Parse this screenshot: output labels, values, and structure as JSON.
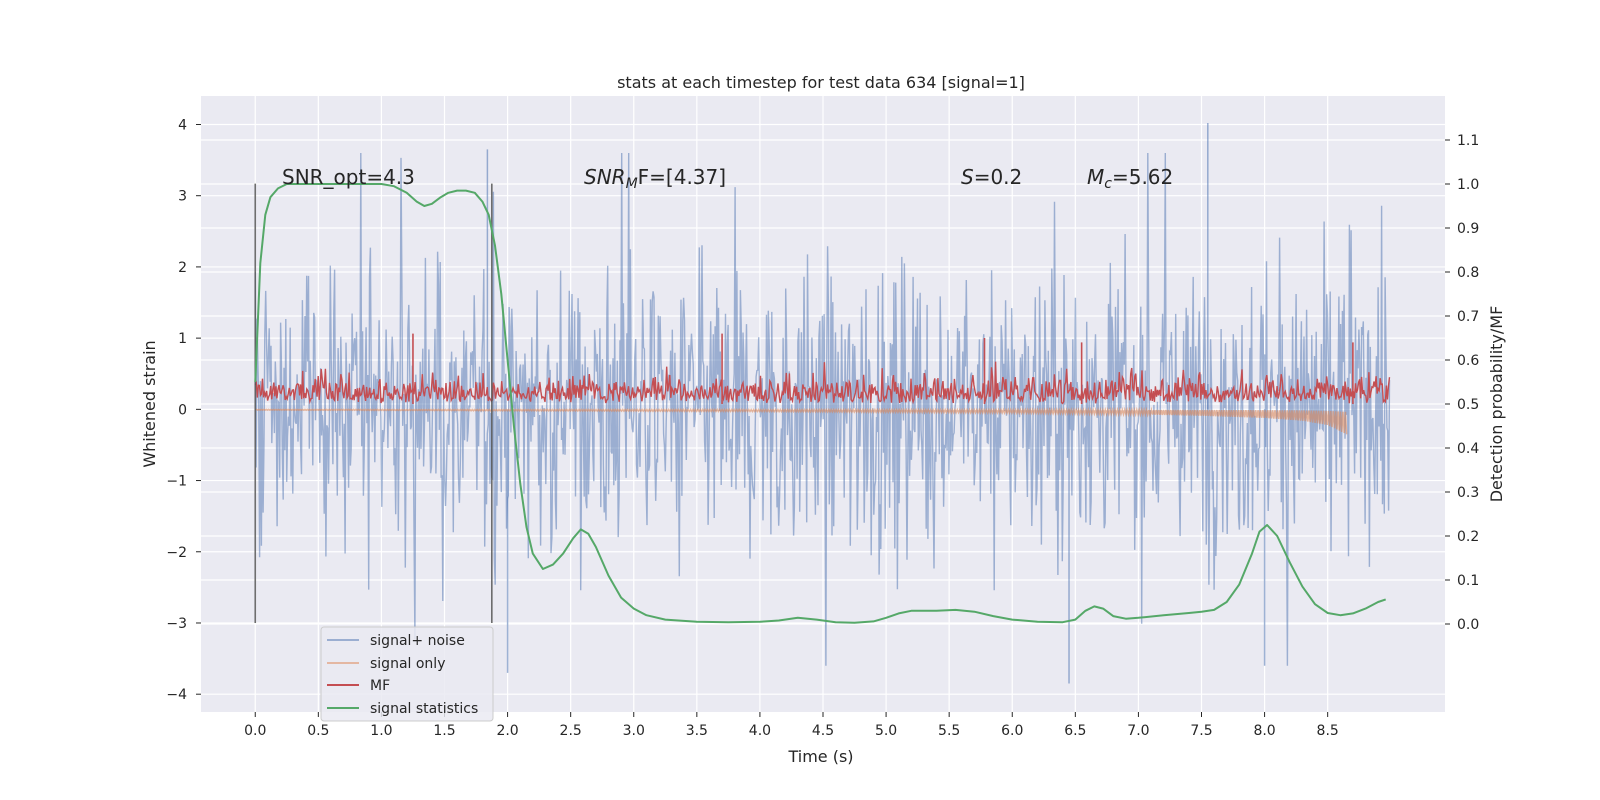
{
  "chart_data": {
    "type": "line",
    "title": "stats at each timestep for test data 634 [signal=1]",
    "xlabel": "Time (s)",
    "ylabel": "Whitened strain",
    "ylabel_right": "Detection probability/MF",
    "xlim": [
      -0.43,
      9.43
    ],
    "ylim": [
      -4.25,
      4.4
    ],
    "ylim_right": [
      -0.2,
      1.2
    ],
    "x_ticks": [
      "0.0",
      "0.5",
      "1.0",
      "1.5",
      "2.0",
      "2.5",
      "3.0",
      "3.5",
      "4.0",
      "4.5",
      "5.0",
      "5.5",
      "6.0",
      "6.5",
      "7.0",
      "7.5",
      "8.0",
      "8.5"
    ],
    "y_ticks": [
      "4",
      "3",
      "2",
      "1",
      "0",
      "−1",
      "−2",
      "−3",
      "−4"
    ],
    "y_ticks_right": [
      "1.1",
      "1.0",
      "0.9",
      "0.8",
      "0.7",
      "0.6",
      "0.5",
      "0.4",
      "0.3",
      "0.2",
      "0.1",
      "0.0"
    ],
    "grid": true,
    "legend_position": "lower-left",
    "annotations": {
      "snr_opt": "SNR_opt=4.3",
      "snr_mf_sym": "SNR",
      "snr_mf_sub": "M",
      "snr_mf_rest": "F=[4.37]",
      "s_sym": "S",
      "s_rest": "=0.2",
      "mc_sym": "M",
      "mc_sub": "c",
      "mc_rest": "=5.62"
    },
    "vlines": [
      0.0,
      1.875
    ],
    "series": [
      {
        "name": "signal+ noise",
        "color": "#4c72b0",
        "axis": "left",
        "x_range": [
          0.0,
          8.99
        ],
        "approx_envelope": [
          -3.0,
          3.0
        ],
        "notable_peaks": [
          [
            1.84,
            3.65
          ],
          [
            7.55,
            4.02
          ],
          [
            6.45,
            -3.85
          ],
          [
            8.0,
            -3.6
          ],
          [
            2.0,
            -3.7
          ]
        ]
      },
      {
        "name": "signal only",
        "color": "#dd8452",
        "axis": "left",
        "x": [
          0.0,
          1.0,
          2.0,
          3.0,
          4.0,
          5.0,
          6.0,
          7.0,
          7.5,
          8.0,
          8.3,
          8.5,
          8.65
        ],
        "amplitude": [
          0.01,
          0.015,
          0.02,
          0.025,
          0.03,
          0.04,
          0.05,
          0.07,
          0.09,
          0.12,
          0.16,
          0.22,
          0.35
        ]
      },
      {
        "name": "MF",
        "color": "#c44e52",
        "axis": "right",
        "x_range": [
          0.0,
          8.99
        ],
        "approx_range": [
          0.5,
          0.65
        ],
        "notable_peaks": [
          [
            1.25,
            0.66
          ],
          [
            3.7,
            0.66
          ],
          [
            5.78,
            0.65
          ],
          [
            6.55,
            0.64
          ],
          [
            8.7,
            0.64
          ]
        ]
      },
      {
        "name": "signal statistics",
        "color": "#55a868",
        "axis": "right",
        "x": [
          0.0,
          0.04,
          0.08,
          0.12,
          0.18,
          0.25,
          0.4,
          0.6,
          0.8,
          1.0,
          1.1,
          1.2,
          1.28,
          1.34,
          1.4,
          1.47,
          1.53,
          1.6,
          1.67,
          1.74,
          1.8,
          1.85,
          1.9,
          1.95,
          2.0,
          2.05,
          2.1,
          2.15,
          2.2,
          2.28,
          2.36,
          2.44,
          2.52,
          2.58,
          2.64,
          2.7,
          2.8,
          2.9,
          3.0,
          3.1,
          3.25,
          3.5,
          3.75,
          4.0,
          4.15,
          4.3,
          4.45,
          4.6,
          4.75,
          4.9,
          5.0,
          5.1,
          5.2,
          5.3,
          5.4,
          5.55,
          5.7,
          5.85,
          6.0,
          6.2,
          6.4,
          6.5,
          6.58,
          6.65,
          6.72,
          6.8,
          6.9,
          7.0,
          7.2,
          7.4,
          7.5,
          7.6,
          7.7,
          7.8,
          7.9,
          7.96,
          8.02,
          8.1,
          8.2,
          8.3,
          8.4,
          8.5,
          8.6,
          8.7,
          8.8,
          8.9,
          8.96
        ],
        "y": [
          0.55,
          0.82,
          0.93,
          0.97,
          0.99,
          1.0,
          1.0,
          1.0,
          1.0,
          1.0,
          0.995,
          0.98,
          0.96,
          0.95,
          0.955,
          0.97,
          0.98,
          0.985,
          0.985,
          0.98,
          0.96,
          0.93,
          0.86,
          0.75,
          0.6,
          0.45,
          0.32,
          0.22,
          0.16,
          0.125,
          0.135,
          0.16,
          0.195,
          0.215,
          0.205,
          0.175,
          0.11,
          0.06,
          0.035,
          0.02,
          0.01,
          0.005,
          0.004,
          0.005,
          0.008,
          0.014,
          0.01,
          0.004,
          0.003,
          0.006,
          0.014,
          0.024,
          0.03,
          0.03,
          0.03,
          0.032,
          0.028,
          0.018,
          0.01,
          0.005,
          0.004,
          0.01,
          0.03,
          0.04,
          0.035,
          0.018,
          0.012,
          0.014,
          0.02,
          0.025,
          0.028,
          0.032,
          0.05,
          0.09,
          0.16,
          0.21,
          0.225,
          0.2,
          0.14,
          0.085,
          0.045,
          0.025,
          0.02,
          0.024,
          0.035,
          0.05,
          0.056
        ]
      }
    ]
  }
}
